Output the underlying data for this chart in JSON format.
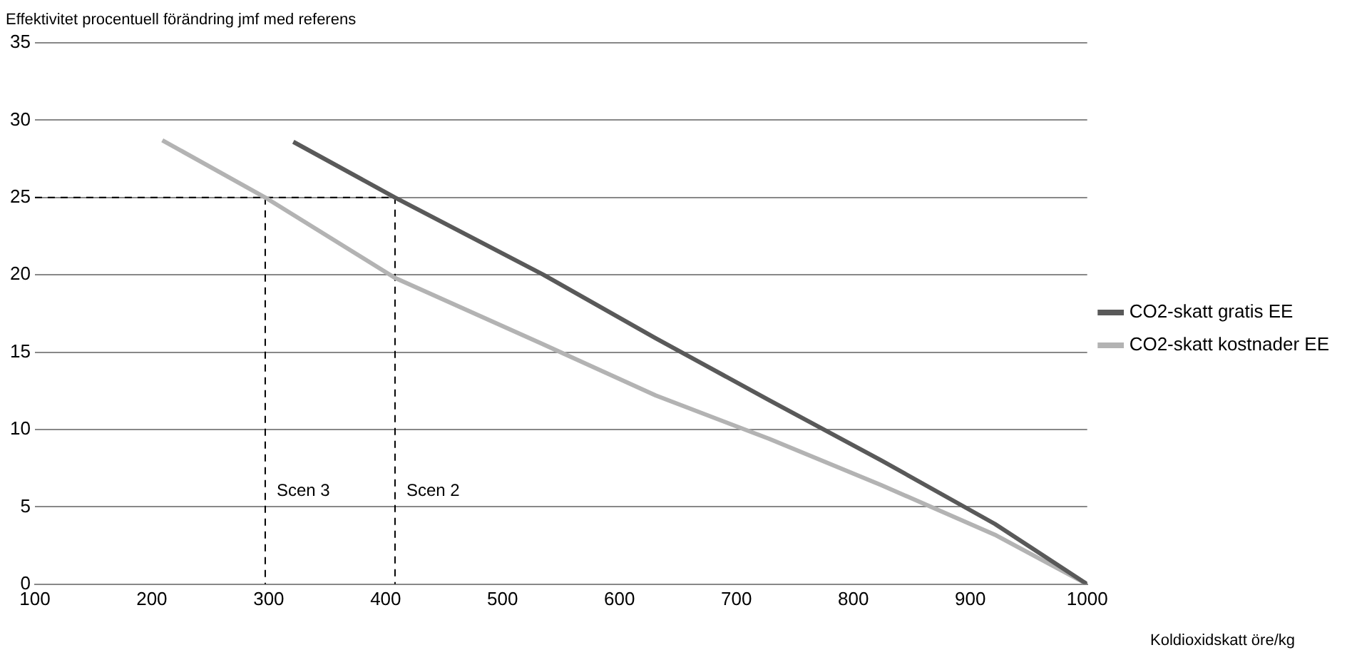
{
  "chart_data": {
    "type": "line",
    "ylabel": "Effektivitet procentuell förändring jmf med referens",
    "xlabel": "Koldioxidskatt öre/kg",
    "xlim": [
      100,
      1000
    ],
    "xticks": [
      100,
      200,
      300,
      400,
      500,
      600,
      700,
      800,
      900,
      1000
    ],
    "ylim": [
      0,
      35
    ],
    "yticks": [
      0,
      5,
      10,
      15,
      20,
      25,
      30,
      35
    ],
    "grid": "y",
    "legend": "right",
    "marker": "none",
    "series": [
      {
        "name": "CO2-skatt gratis EE",
        "color": "#595959",
        "x": [
          321,
          408,
          535,
          631,
          728,
          824,
          921,
          1000
        ],
        "values": [
          28.6,
          25,
          20,
          15.9,
          11.9,
          8,
          3.9,
          0
        ]
      },
      {
        "name": "CO2-skatt kostnader EE",
        "color": "#b3b3b3",
        "x": [
          209,
          297,
          408,
          535,
          631,
          728,
          824,
          921,
          1000
        ],
        "values": [
          28.7,
          25,
          19.8,
          15.5,
          12.2,
          9.4,
          6.4,
          3.2,
          0
        ]
      },
      {
        "color": "#000000",
        "line_style": "dashed",
        "x": [
          100,
          408,
          408
        ],
        "values": [
          25,
          25,
          0
        ]
      },
      {
        "color": "#000000",
        "line_style": "dashed",
        "x": [
          297,
          297
        ],
        "values": [
          25,
          0
        ]
      }
    ],
    "annotations": [
      {
        "text": "Scen 3",
        "x": 297,
        "y": 6
      },
      {
        "text": "Scen 2",
        "x": 408,
        "y": 6
      }
    ]
  }
}
